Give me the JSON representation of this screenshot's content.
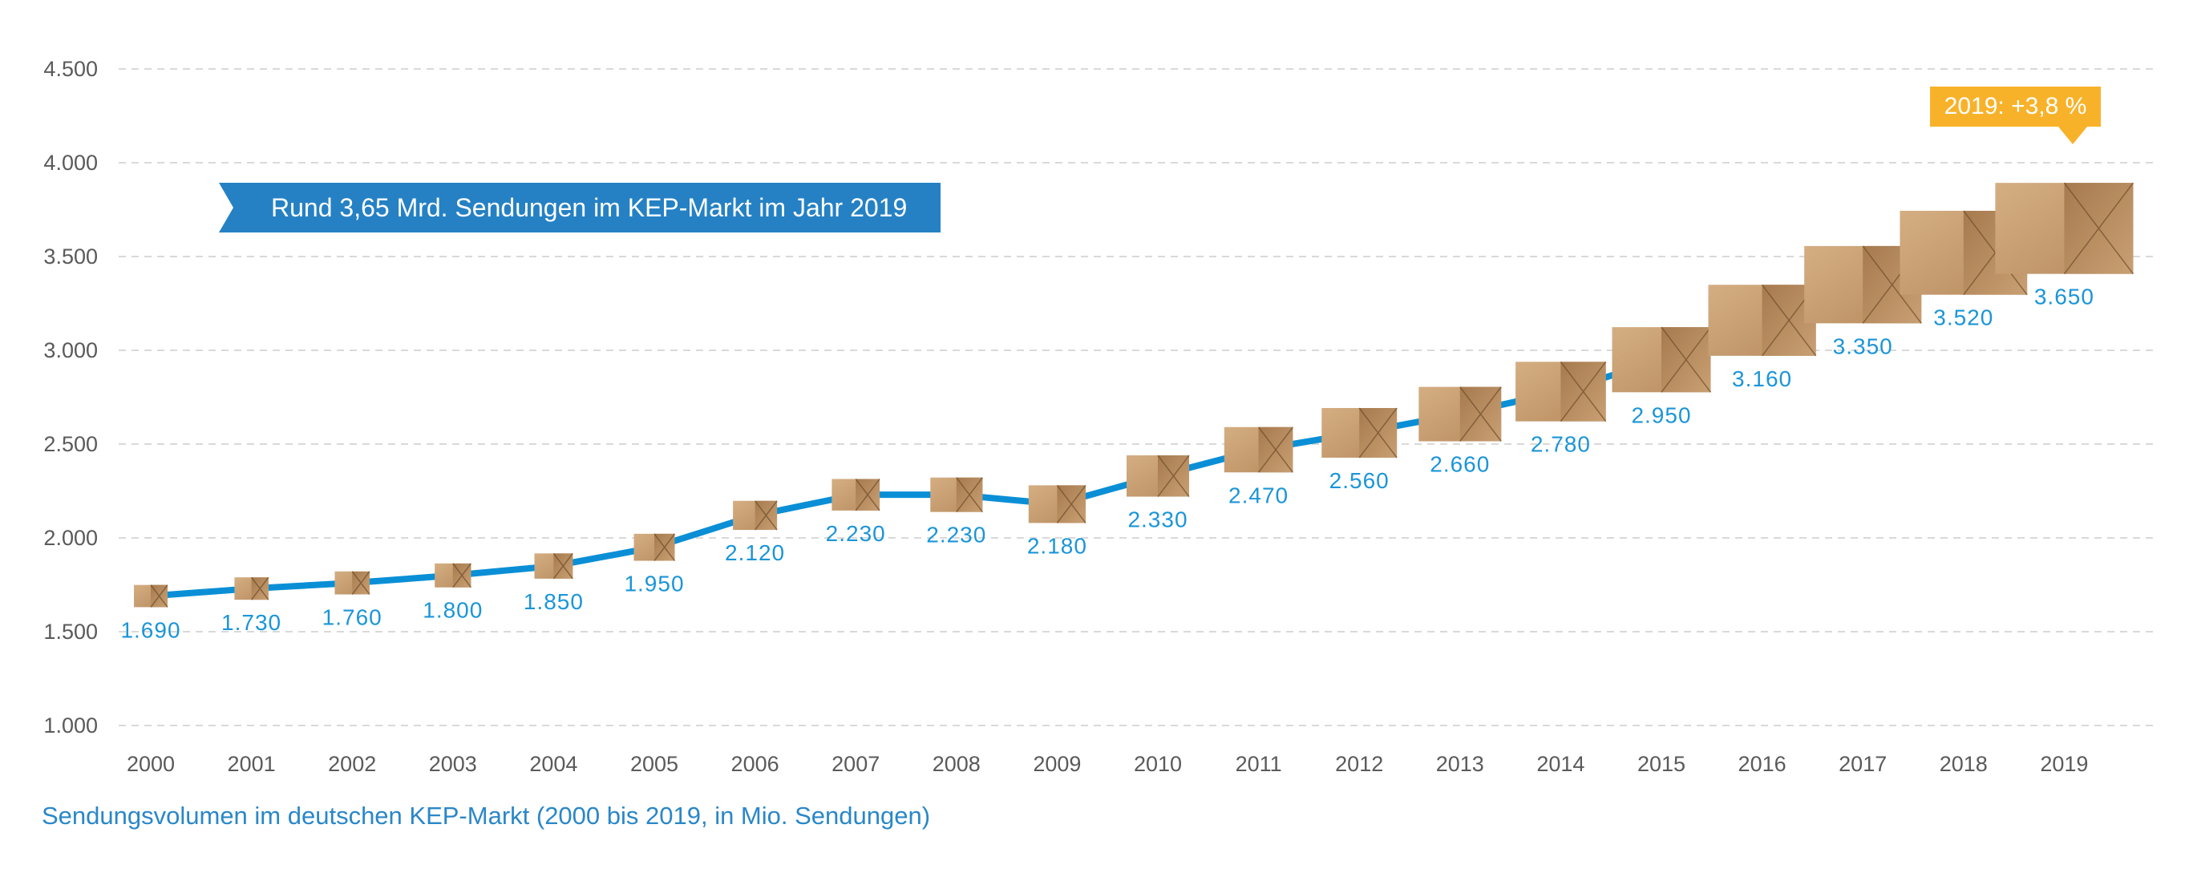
{
  "chart_data": {
    "type": "line",
    "title": "",
    "caption": "Sendungsvolumen im deutschen KEP-Markt (2000 bis 2019, in Mio. Sendungen)",
    "categories": [
      "2000",
      "2001",
      "2002",
      "2003",
      "2004",
      "2005",
      "2006",
      "2007",
      "2008",
      "2009",
      "2010",
      "2011",
      "2012",
      "2013",
      "2014",
      "2015",
      "2016",
      "2017",
      "2018",
      "2019"
    ],
    "values": [
      1690,
      1730,
      1760,
      1800,
      1850,
      1950,
      2120,
      2230,
      2230,
      2180,
      2330,
      2470,
      2560,
      2660,
      2780,
      2950,
      3160,
      3350,
      3520,
      3650
    ],
    "data_labels": [
      "1.690",
      "1.730",
      "1.760",
      "1.800",
      "1.850",
      "1.950",
      "2.120",
      "2.230",
      "2.230",
      "2.180",
      "2.330",
      "2.470",
      "2.560",
      "2.660",
      "2.780",
      "2.950",
      "3.160",
      "3.350",
      "3.520",
      "3.650"
    ],
    "ylim": [
      1000,
      4500
    ],
    "yticks": [
      1000,
      1500,
      2000,
      2500,
      3000,
      3500,
      4000,
      4500
    ],
    "ytick_labels": [
      "1.000",
      "1.500",
      "2.000",
      "2.500",
      "3.000",
      "3.500",
      "4.000",
      "4.500"
    ],
    "grid": "horizontal dashed",
    "marker": "cardboard-box-icon",
    "colors": {
      "line": "#0a8fd6",
      "labels": "#1b95d8",
      "banner": "#2581c4",
      "callout": "#f8b22a",
      "grid": "#d9d9d9"
    }
  },
  "annotations": {
    "banner": "Rund 3,65 Mrd. Sendungen im KEP-Markt im Jahr 2019",
    "callout": "2019: +3,8 %"
  }
}
